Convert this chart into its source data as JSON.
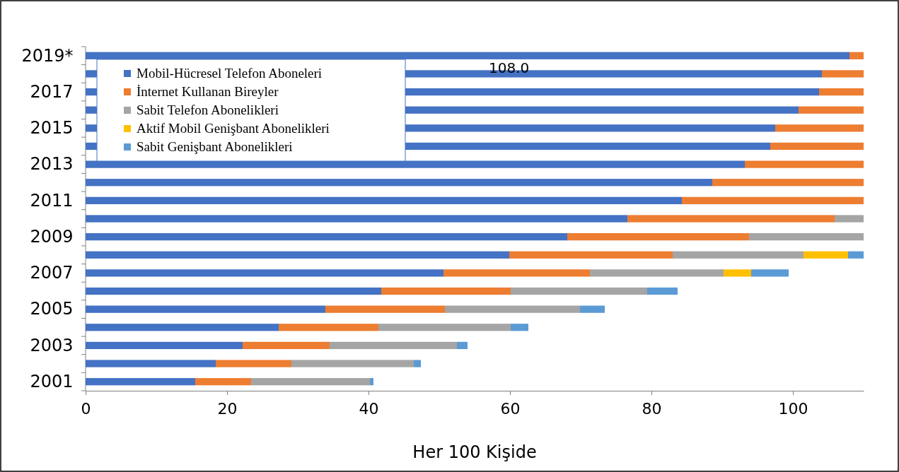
{
  "chart_data": {
    "type": "bar",
    "orientation": "horizontal",
    "stacked": true,
    "xlabel": "Her 100 Kişide",
    "categories": [
      "2019*",
      null,
      "2017",
      null,
      "2015",
      null,
      "2013",
      null,
      "2011",
      null,
      "2009",
      null,
      "2007",
      null,
      "2005",
      null,
      "2003",
      null,
      "2001"
    ],
    "series": [
      {
        "name": "Mobil-Hücresel Telefon Aboneleri",
        "color": "#4472c4",
        "values": [
          108.0,
          104.1,
          103.7,
          100.8,
          97.5,
          96.8,
          93.2,
          88.6,
          84.3,
          76.6,
          68.1,
          59.9,
          50.6,
          41.8,
          33.9,
          27.3,
          22.2,
          18.4,
          15.5
        ]
      },
      {
        "name": "İnternet Kullanan Bireyler",
        "color": "#ed7d31",
        "values": [
          2.0,
          5.9,
          6.3,
          9.2,
          12.5,
          13.2,
          16.8,
          21.4,
          25.7,
          29.3,
          25.7,
          23.1,
          20.7,
          18.3,
          16.9,
          14.1,
          12.3,
          10.7,
          7.9
        ]
      },
      {
        "name": "Sabit Telefon Abonelikleri",
        "color": "#a5a5a5",
        "values": [
          null,
          null,
          null,
          null,
          null,
          null,
          null,
          null,
          null,
          4.1,
          16.2,
          18.5,
          18.9,
          19.3,
          19.1,
          18.7,
          18.0,
          17.3,
          16.8
        ]
      },
      {
        "name": "Aktif Mobil Genişbant Abonelikleri",
        "color": "#ffc000",
        "values": [
          null,
          null,
          null,
          null,
          null,
          null,
          null,
          null,
          null,
          null,
          null,
          6.3,
          3.9,
          null,
          null,
          null,
          null,
          null,
          null
        ]
      },
      {
        "name": "Sabit Genişbant Abonelikleri",
        "color": "#5b9bd5",
        "values": [
          null,
          null,
          null,
          null,
          null,
          null,
          null,
          null,
          null,
          null,
          null,
          2.2,
          5.3,
          4.3,
          3.5,
          2.5,
          1.5,
          1.0,
          0.5
        ]
      }
    ],
    "xlim": [
      0,
      110
    ],
    "xticks": [
      0,
      20,
      40,
      60,
      80,
      100
    ],
    "grid": false,
    "legend": "top left",
    "annotations": [
      "108.0"
    ]
  }
}
